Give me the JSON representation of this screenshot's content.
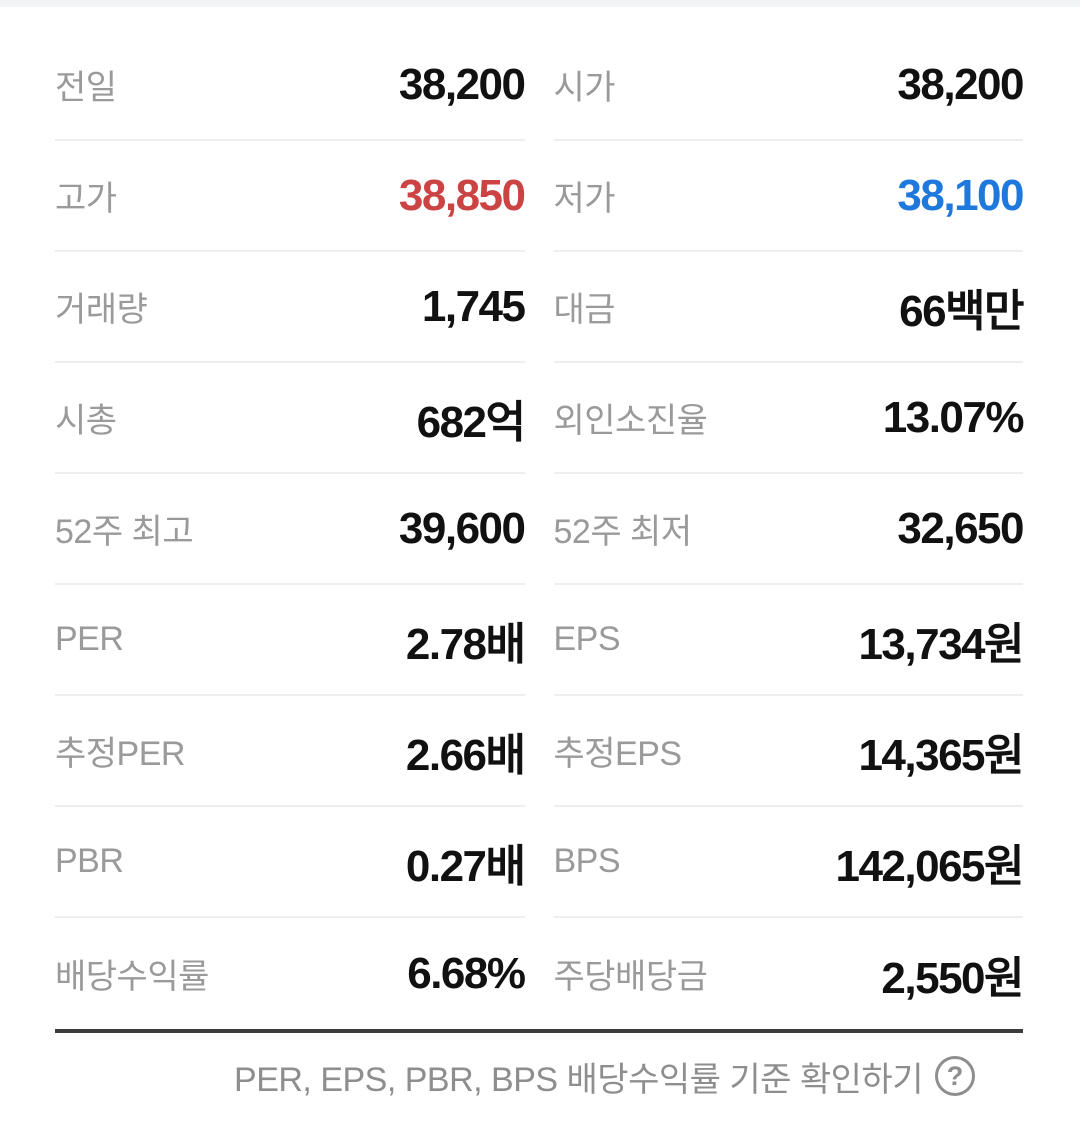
{
  "colors": {
    "up_red": "#cb4343",
    "down_blue": "#1f78dc",
    "label_gray": "#9a9a9a",
    "value_black": "#111111",
    "divider_light": "#eeeeee",
    "divider_dark": "#3c3c3c",
    "footer_gray": "#8e8e8e",
    "top_strip": "#f2f4f6"
  },
  "table": {
    "rows": [
      {
        "left": {
          "label": "전일",
          "value": "38,200"
        },
        "right": {
          "label": "시가",
          "value": "38,200"
        }
      },
      {
        "left": {
          "label": "고가",
          "value": "38,850",
          "color": "red"
        },
        "right": {
          "label": "저가",
          "value": "38,100",
          "color": "blue"
        }
      },
      {
        "left": {
          "label": "거래량",
          "value": "1,745"
        },
        "right": {
          "label": "대금",
          "value": "66백만"
        }
      },
      {
        "left": {
          "label": "시총",
          "value": "682억"
        },
        "right": {
          "label": "외인소진율",
          "value": "13.07%"
        }
      },
      {
        "left": {
          "label": "52주 최고",
          "value": "39,600"
        },
        "right": {
          "label": "52주 최저",
          "value": "32,650"
        }
      },
      {
        "left": {
          "label": "PER",
          "value": "2.78배"
        },
        "right": {
          "label": "EPS",
          "value": "13,734원"
        }
      },
      {
        "left": {
          "label": "추정PER",
          "value": "2.66배"
        },
        "right": {
          "label": "추정EPS",
          "value": "14,365원"
        }
      },
      {
        "left": {
          "label": "PBR",
          "value": "0.27배"
        },
        "right": {
          "label": "BPS",
          "value": "142,065원"
        }
      },
      {
        "left": {
          "label": "배당수익률",
          "value": "6.68%"
        },
        "right": {
          "label": "주당배당금",
          "value": "2,550원"
        }
      }
    ]
  },
  "footer": {
    "text": "PER, EPS, PBR, BPS 배당수익률 기준 확인하기",
    "help_icon_glyph": "?"
  }
}
